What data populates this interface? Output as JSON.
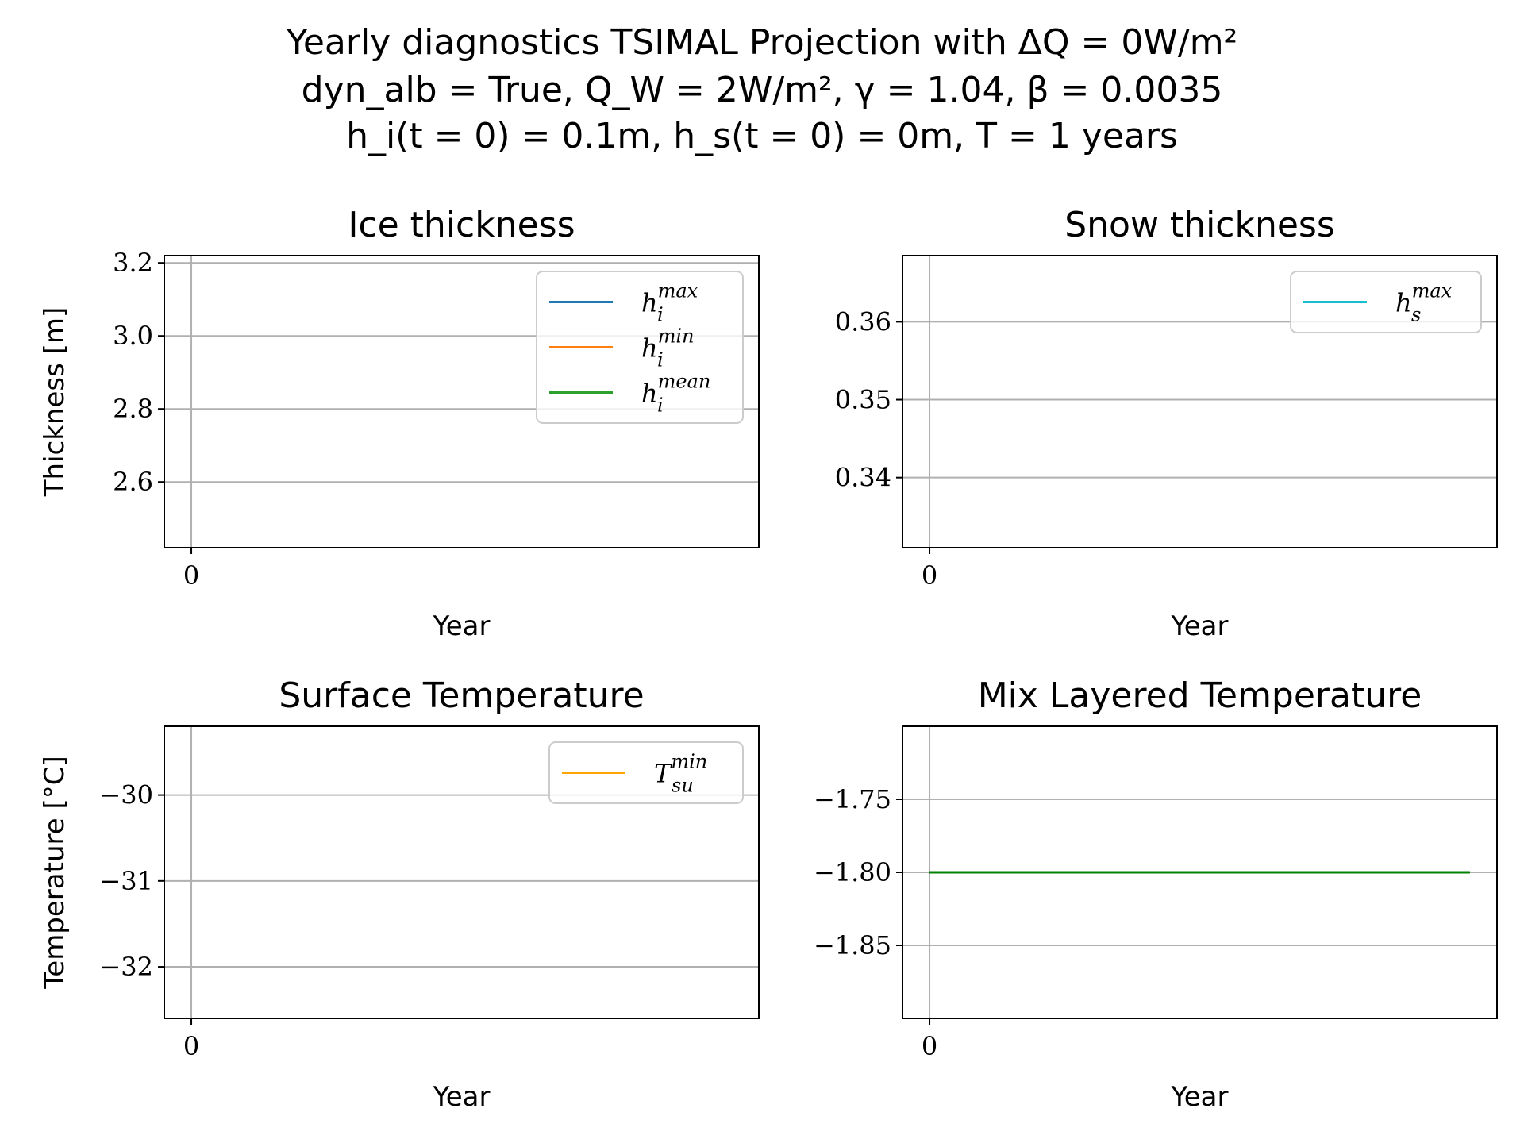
{
  "figure": {
    "title_lines": [
      "Yearly diagnostics TSIMAL Projection with ΔQ = 0W/m²",
      "dyn_alb = True, Q_W = 2W/m², γ = 1.04, β = 0.0035",
      "h_i(t = 0) = 0.1m, h_s(t = 0) = 0m, T = 1 years"
    ]
  },
  "chart_data": [
    {
      "type": "line",
      "title": "Ice thickness",
      "xlabel": "Year",
      "ylabel": "Thickness [m]",
      "xticks": [
        "0"
      ],
      "yticks": [
        2.6,
        2.8,
        3.0,
        3.2
      ],
      "ylim": [
        2.42,
        3.22
      ],
      "xlim": [
        -0.05,
        1.05
      ],
      "grid": true,
      "legend_position": "upper-right",
      "series": [
        {
          "name_base": "h",
          "name_sub": "i",
          "name_sup": "max",
          "color": "#1f77b4",
          "x": [],
          "y": []
        },
        {
          "name_base": "h",
          "name_sub": "i",
          "name_sup": "min",
          "color": "#ff7f0e",
          "x": [],
          "y": []
        },
        {
          "name_base": "h",
          "name_sub": "i",
          "name_sup": "mean",
          "color": "#2ca02c",
          "x": [],
          "y": []
        }
      ]
    },
    {
      "type": "line",
      "title": "Snow thickness",
      "xlabel": "Year",
      "ylabel": "",
      "xticks": [
        "0"
      ],
      "yticks": [
        0.34,
        0.35,
        0.36
      ],
      "ylim": [
        0.331,
        0.3685
      ],
      "xlim": [
        -0.05,
        1.05
      ],
      "grid": true,
      "legend_position": "upper-right",
      "series": [
        {
          "name_base": "h",
          "name_sub": "s",
          "name_sup": "max",
          "color": "#17becf",
          "x": [],
          "y": []
        }
      ]
    },
    {
      "type": "line",
      "title": "Surface Temperature",
      "xlabel": "Year",
      "ylabel": "Temperature [°C]",
      "xticks": [
        "0"
      ],
      "yticks": [
        -32,
        -31,
        -30
      ],
      "ylim": [
        -32.6,
        -29.2
      ],
      "xlim": [
        -0.05,
        1.05
      ],
      "grid": true,
      "legend_position": "upper-right",
      "series": [
        {
          "name_base": "T",
          "name_sub": "su",
          "name_sup": "min",
          "color": "#ffa500",
          "x": [],
          "y": []
        }
      ]
    },
    {
      "type": "line",
      "title": "Mix Layered Temperature",
      "xlabel": "Year",
      "ylabel": "",
      "xticks": [
        "0"
      ],
      "yticks": [
        -1.85,
        -1.8,
        -1.75
      ],
      "ylim": [
        -1.9,
        -1.7
      ],
      "xlim": [
        -0.05,
        1.05
      ],
      "grid": true,
      "legend_position": "",
      "series": [
        {
          "color": "#008000",
          "x": [
            0,
            1
          ],
          "y": [
            -1.8,
            -1.8
          ]
        }
      ]
    }
  ]
}
